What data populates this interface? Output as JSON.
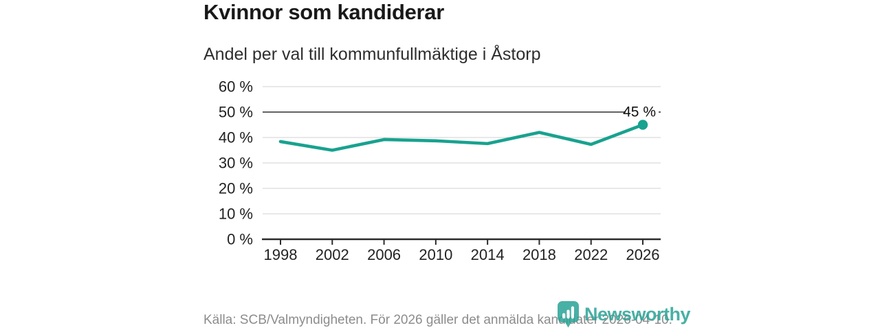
{
  "chart_data": {
    "type": "line",
    "title": "Kvinnor som kandiderar",
    "subtitle": "Andel per val till kommunfullmäktige i Åstorp",
    "categories": [
      "1998",
      "2002",
      "2006",
      "2010",
      "2014",
      "2018",
      "2022",
      "2026"
    ],
    "values": [
      38.4,
      35.0,
      39.2,
      38.7,
      37.6,
      42.0,
      37.3,
      45.0
    ],
    "ylim": [
      0,
      60
    ],
    "y_ticks": [
      {
        "value": 0,
        "label": "0 %"
      },
      {
        "value": 10,
        "label": "10 %"
      },
      {
        "value": 20,
        "label": "20 %"
      },
      {
        "value": 30,
        "label": "30 %"
      },
      {
        "value": 40,
        "label": "40 %"
      },
      {
        "value": 50,
        "label": "50 %"
      },
      {
        "value": 60,
        "label": "60 %"
      }
    ],
    "benchmark_value": 50,
    "end_label": "45 %",
    "grid": true,
    "legend": "none",
    "colors": {
      "line": "#18a28f",
      "grid": "#d9d9d9",
      "benchmark": "#4b4b4b",
      "axis": "#2b2b2b",
      "tick_text": "#222222"
    }
  },
  "footer": {
    "source": "Källa: SCB/Valmyndigheten. För 2026 gäller det anmälda kandidater 2026-04-10.",
    "brand": "Newsworthy",
    "brand_color": "#2aa396"
  }
}
